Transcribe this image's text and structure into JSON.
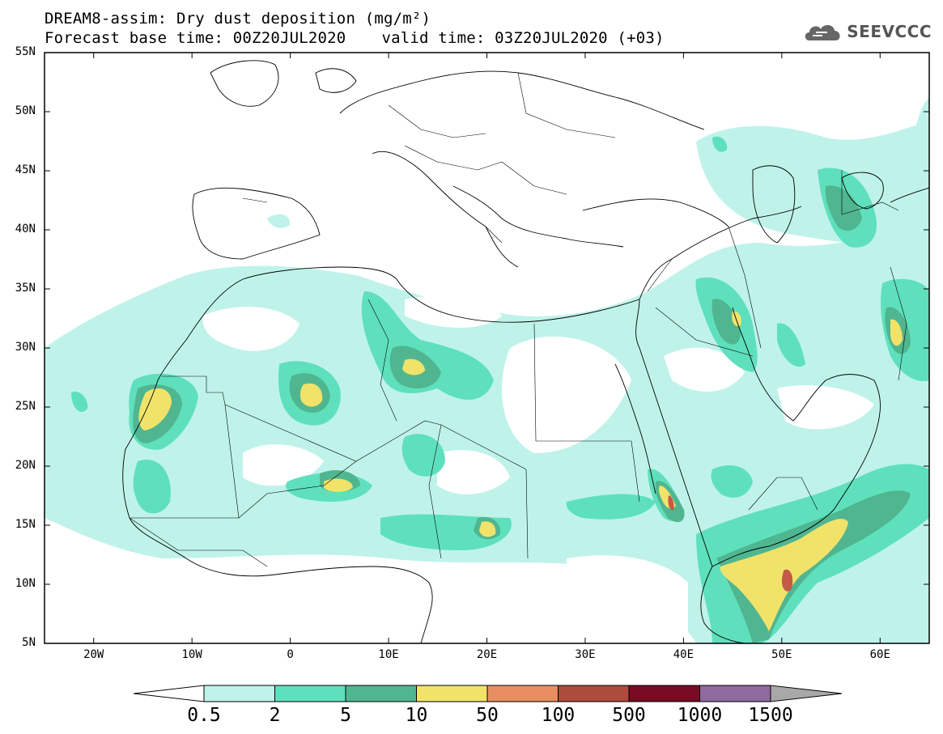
{
  "title": {
    "line1": "DREAM8-assim: Dry dust deposition (mg/m²)",
    "base_time": "Forecast base time: 00Z20JUL2020",
    "valid_time": "valid time: 03Z20JUL2020 (+03)"
  },
  "logo": {
    "text": "SEEVCCC",
    "icon": "cloud-icon"
  },
  "axes": {
    "lat_labels": [
      "55N",
      "50N",
      "45N",
      "40N",
      "35N",
      "30N",
      "25N",
      "20N",
      "15N",
      "10N",
      "5N"
    ],
    "lon_labels": [
      "20W",
      "10W",
      "0",
      "10E",
      "20E",
      "30E",
      "40E",
      "50E",
      "60E"
    ],
    "lon_range": [
      -25,
      65
    ],
    "lat_range": [
      5,
      55
    ]
  },
  "legend": {
    "labels": [
      "0.5",
      "2",
      "5",
      "10",
      "50",
      "100",
      "500",
      "1000",
      "1500"
    ],
    "colors": [
      "#ffffff",
      "#bff3ea",
      "#5fe0bd",
      "#4fb690",
      "#f1e36a",
      "#e98e61",
      "#ad4b3d",
      "#7a0b25",
      "#8f6a9e",
      "#a8a8a8"
    ]
  },
  "colors": {
    "light": "#bff3ea",
    "mid": "#5fe0bd",
    "dark": "#4fb690",
    "yellow": "#f1e36a",
    "orange": "#e98e61",
    "red": "#c45a47"
  }
}
